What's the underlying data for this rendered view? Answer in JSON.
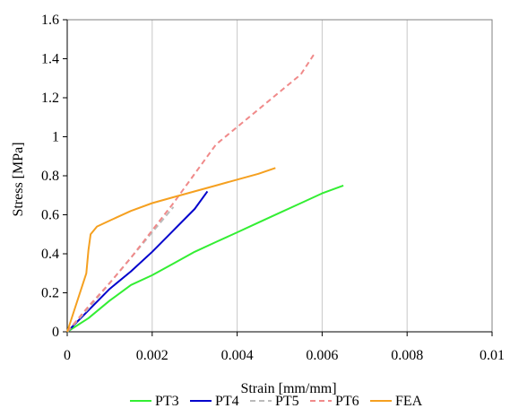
{
  "chart_data": {
    "type": "line",
    "title": "",
    "xlabel": "Strain [mm/mm]",
    "ylabel": "Stress [MPa]",
    "xlim": [
      0,
      0.01
    ],
    "ylim": [
      0,
      1.6
    ],
    "x_ticks": [
      "0",
      "0.002",
      "0.004",
      "0.006",
      "0.008",
      "0.01"
    ],
    "y_ticks": [
      "0",
      "0.2",
      "0.4",
      "0.6",
      "0.8",
      "1",
      "1.2",
      "1.4",
      "1.6"
    ],
    "grid": "vertical",
    "legend_placement": "bottom",
    "series": [
      {
        "name": "PT3",
        "color": "#33ee33",
        "dash": "solid",
        "points": [
          [
            0,
            0
          ],
          [
            0.0005,
            0.07
          ],
          [
            0.001,
            0.16
          ],
          [
            0.0015,
            0.24
          ],
          [
            0.002,
            0.29
          ],
          [
            0.0025,
            0.35
          ],
          [
            0.003,
            0.41
          ],
          [
            0.0035,
            0.46
          ],
          [
            0.004,
            0.51
          ],
          [
            0.0045,
            0.56
          ],
          [
            0.005,
            0.61
          ],
          [
            0.0055,
            0.66
          ],
          [
            0.006,
            0.71
          ],
          [
            0.0065,
            0.75
          ]
        ]
      },
      {
        "name": "PT4",
        "color": "#0000cc",
        "dash": "solid",
        "points": [
          [
            0,
            0
          ],
          [
            0.0005,
            0.11
          ],
          [
            0.001,
            0.22
          ],
          [
            0.0015,
            0.31
          ],
          [
            0.002,
            0.41
          ],
          [
            0.0025,
            0.52
          ],
          [
            0.003,
            0.63
          ],
          [
            0.0033,
            0.72
          ]
        ]
      },
      {
        "name": "PT5",
        "color": "#bbbbbb",
        "dash": "dashed",
        "points": [
          [
            0,
            0
          ],
          [
            0.0005,
            0.12
          ],
          [
            0.001,
            0.25
          ],
          [
            0.0015,
            0.38
          ],
          [
            0.002,
            0.51
          ],
          [
            0.0025,
            0.64
          ]
        ]
      },
      {
        "name": "PT6",
        "color": "#f08a8a",
        "dash": "dashed",
        "points": [
          [
            0,
            0
          ],
          [
            0.0005,
            0.13
          ],
          [
            0.001,
            0.25
          ],
          [
            0.0015,
            0.38
          ],
          [
            0.002,
            0.52
          ],
          [
            0.0025,
            0.66
          ],
          [
            0.003,
            0.81
          ],
          [
            0.0035,
            0.96
          ],
          [
            0.004,
            1.05
          ],
          [
            0.0045,
            1.14
          ],
          [
            0.005,
            1.23
          ],
          [
            0.0055,
            1.32
          ],
          [
            0.0058,
            1.42
          ]
        ]
      },
      {
        "name": "FEA",
        "color": "#f5a020",
        "dash": "solid",
        "points": [
          [
            0,
            0
          ],
          [
            0.00045,
            0.3
          ],
          [
            0.0005,
            0.42
          ],
          [
            0.00055,
            0.5
          ],
          [
            0.0007,
            0.54
          ],
          [
            0.001,
            0.57
          ],
          [
            0.0015,
            0.62
          ],
          [
            0.002,
            0.66
          ],
          [
            0.0025,
            0.69
          ],
          [
            0.003,
            0.72
          ],
          [
            0.0035,
            0.75
          ],
          [
            0.004,
            0.78
          ],
          [
            0.0045,
            0.81
          ],
          [
            0.0049,
            0.84
          ]
        ]
      }
    ]
  }
}
